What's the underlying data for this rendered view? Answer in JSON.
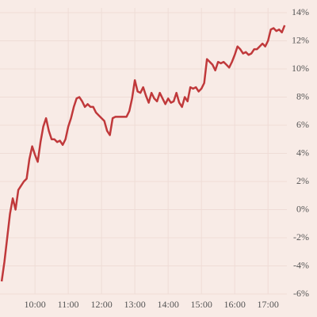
{
  "chart_data": {
    "type": "line",
    "x": [
      "09:00",
      "09:05",
      "09:10",
      "09:15",
      "09:20",
      "09:25",
      "09:30",
      "09:35",
      "09:40",
      "09:45",
      "09:50",
      "09:55",
      "10:00",
      "10:05",
      "10:10",
      "10:15",
      "10:20",
      "10:25",
      "10:30",
      "10:35",
      "10:40",
      "10:45",
      "10:50",
      "10:55",
      "11:00",
      "11:05",
      "11:10",
      "11:15",
      "11:20",
      "11:25",
      "11:30",
      "11:35",
      "11:40",
      "11:45",
      "11:50",
      "11:55",
      "12:00",
      "12:05",
      "12:10",
      "12:15",
      "12:20",
      "12:25",
      "12:30",
      "12:35",
      "12:40",
      "12:45",
      "12:50",
      "12:55",
      "13:00",
      "13:05",
      "13:10",
      "13:15",
      "13:20",
      "13:25",
      "13:30",
      "13:35",
      "13:40",
      "13:45",
      "13:50",
      "13:55",
      "14:00",
      "14:05",
      "14:10",
      "14:15",
      "14:20",
      "14:25",
      "14:30",
      "14:35",
      "14:40",
      "14:45",
      "14:50",
      "14:55",
      "15:00",
      "15:05",
      "15:10",
      "15:15",
      "15:20",
      "15:25",
      "15:30",
      "15:35",
      "15:40",
      "15:45",
      "15:50",
      "15:55",
      "16:00",
      "16:05",
      "16:10",
      "16:15",
      "16:20",
      "16:25",
      "16:30",
      "16:35",
      "16:40",
      "16:45",
      "16:50",
      "16:55",
      "17:00",
      "17:05",
      "17:10",
      "17:15",
      "17:20",
      "17:25",
      "17:30"
    ],
    "values": [
      -5.1,
      -3.7,
      -2.0,
      -0.3,
      0.8,
      0,
      1.4,
      1.7,
      2.0,
      2.2,
      3.6,
      4.5,
      3.9,
      3.4,
      4.8,
      5.9,
      6.5,
      5.6,
      5.0,
      5.0,
      4.8,
      4.9,
      4.6,
      5.0,
      5.9,
      6.5,
      7.3,
      7.9,
      8.0,
      7.7,
      7.3,
      7.5,
      7.3,
      7.3,
      6.9,
      6.7,
      6.5,
      6.3,
      5.6,
      5.3,
      6.5,
      6.6,
      6.6,
      6.6,
      6.6,
      6.6,
      7.0,
      7.9,
      9.2,
      8.4,
      8.3,
      8.7,
      8.1,
      7.6,
      8.3,
      7.9,
      7.7,
      8.3,
      7.9,
      7.5,
      7.9,
      7.6,
      7.7,
      8.3,
      7.6,
      7.3,
      8.0,
      7.7,
      8.7,
      8.6,
      8.7,
      8.4,
      8.6,
      9.0,
      10.7,
      10.5,
      10.3,
      9.9,
      10.5,
      10.4,
      10.5,
      10.3,
      10.1,
      10.5,
      11.0,
      11.6,
      11.4,
      11.1,
      11.2,
      11.0,
      11.1,
      11.4,
      11.4,
      11.6,
      11.8,
      11.6,
      12.0,
      12.8,
      12.9,
      12.7,
      12.8,
      12.6,
      13.1
    ],
    "color": "#c0393b",
    "xlim": [
      "08:57",
      "17:34"
    ],
    "xticks": [
      "10:00",
      "11:00",
      "12:00",
      "13:00",
      "14:00",
      "15:00",
      "16:00",
      "17:00"
    ],
    "ylim": [
      -6,
      14
    ],
    "yticks": [
      {
        "value": -6,
        "label": "-6%"
      },
      {
        "value": -4,
        "label": "-4%"
      },
      {
        "value": -2,
        "label": "-2%"
      },
      {
        "value": 0,
        "label": "0%"
      },
      {
        "value": 2,
        "label": "2%"
      },
      {
        "value": 4,
        "label": "4%"
      },
      {
        "value": 6,
        "label": "6%"
      },
      {
        "value": 8,
        "label": "8%"
      },
      {
        "value": 10,
        "label": "10%"
      },
      {
        "value": 12,
        "label": "12%"
      },
      {
        "value": 14,
        "label": "14%"
      }
    ],
    "grid": true
  }
}
